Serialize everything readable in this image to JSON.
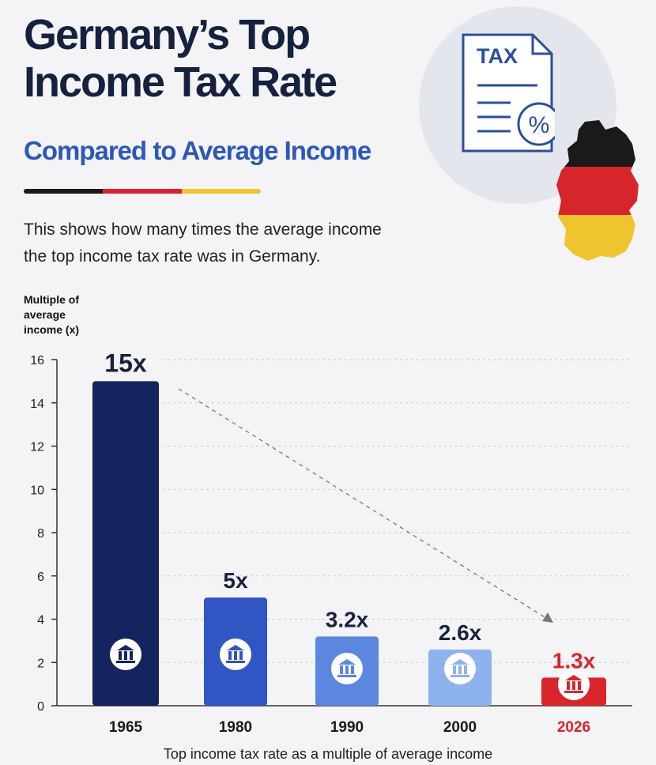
{
  "header": {
    "title_lines": [
      "Germany’s Top",
      "Income Tax Rate"
    ],
    "subtitle": "Compared to Average Income",
    "description_lines": [
      "This shows how many times the average income",
      "the top income tax rate was in Germany."
    ],
    "badge_text": "TAX",
    "badge_symbol": "%"
  },
  "colors": {
    "navy": "#16285e",
    "flag_black": "#1a1a1a",
    "flag_red": "#d7262b",
    "flag_gold": "#f0c42e",
    "highlight_red": "#d7262b"
  },
  "chart_data": {
    "type": "bar",
    "categories": [
      "1965",
      "1980",
      "1990",
      "2000",
      "2026"
    ],
    "values": [
      15,
      5,
      3.2,
      2.6,
      1.3
    ],
    "data_labels": [
      "15x",
      "5x",
      "3.2x",
      "2.6x",
      "1.3x"
    ],
    "bar_colors": [
      "#13245e",
      "#2f56c2",
      "#5b87de",
      "#8eb2ec",
      "#d9262b"
    ],
    "ylabel_lines": [
      "Multiple of",
      "average",
      "income (x)"
    ],
    "xlabel": "Top income tax rate as a multiple of average income",
    "ylim": [
      0,
      16
    ],
    "yticks": [
      0,
      2,
      4,
      6,
      8,
      10,
      12,
      14,
      16
    ],
    "grid": true,
    "highlight_category": "2026",
    "trend_arrow": true,
    "bar_icon": "bank-icon"
  }
}
